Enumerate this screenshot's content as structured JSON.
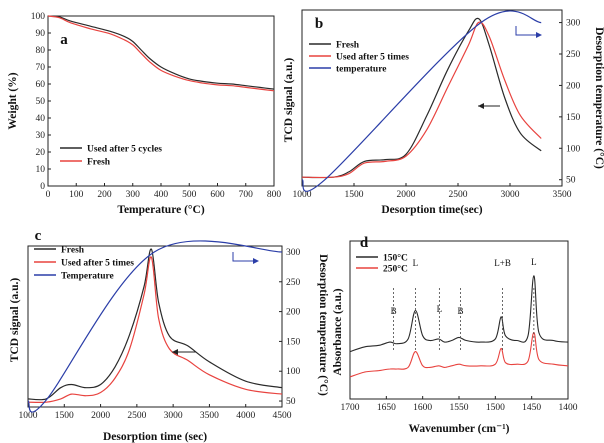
{
  "colors": {
    "black": "#2a2a2a",
    "red": "#e8433f",
    "blue": "#2b3ea8"
  },
  "chart_data": [
    {
      "panel": "a",
      "type": "line",
      "xlabel": "Temperature (°C)",
      "ylabel": "Weight (%)",
      "xlim": [
        0,
        800
      ],
      "ylim": [
        0,
        100
      ],
      "xticks": [
        "0",
        "100",
        "200",
        "300",
        "400",
        "500",
        "600",
        "700",
        "800"
      ],
      "yticks": [
        "0",
        "10",
        "20",
        "30",
        "40",
        "50",
        "60",
        "70",
        "80",
        "90",
        "100"
      ],
      "legend_position": "bottom-left",
      "series": [
        {
          "name": "Used after 5 cycles",
          "color": "black",
          "points": [
            [
              0,
              100
            ],
            [
              40,
              99.5
            ],
            [
              80,
              97
            ],
            [
              150,
              94
            ],
            [
              220,
              91
            ],
            [
              270,
              88
            ],
            [
              300,
              85
            ],
            [
              330,
              80
            ],
            [
              360,
              75
            ],
            [
              400,
              70
            ],
            [
              450,
              66
            ],
            [
              500,
              63
            ],
            [
              550,
              61.5
            ],
            [
              600,
              60.5
            ],
            [
              650,
              60
            ],
            [
              700,
              59
            ],
            [
              750,
              58
            ],
            [
              800,
              57
            ]
          ]
        },
        {
          "name": "Fresh",
          "color": "red",
          "points": [
            [
              0,
              100
            ],
            [
              40,
              99
            ],
            [
              80,
              96
            ],
            [
              150,
              92.5
            ],
            [
              220,
              89.5
            ],
            [
              270,
              86
            ],
            [
              300,
              83
            ],
            [
              330,
              78
            ],
            [
              360,
              73
            ],
            [
              400,
              68
            ],
            [
              450,
              64.5
            ],
            [
              500,
              62
            ],
            [
              550,
              60.5
            ],
            [
              600,
              59.5
            ],
            [
              650,
              59
            ],
            [
              700,
              58
            ],
            [
              750,
              57
            ],
            [
              800,
              56
            ]
          ]
        }
      ]
    },
    {
      "panel": "b",
      "type": "line",
      "xlabel": "Desorption time(sec)",
      "ylabel": "TCD signal (a.u.)",
      "y2label": "Desorption temperature (°C)",
      "xlim": [
        1000,
        3500
      ],
      "y2lim": [
        40,
        320
      ],
      "xticks": [
        "1000",
        "1500",
        "2000",
        "2500",
        "3000",
        "3500"
      ],
      "y2ticks": [
        "50",
        "100",
        "150",
        "200",
        "250",
        "300"
      ],
      "legend_position": "top-left",
      "series": [
        {
          "name": "Fresh",
          "color": "black",
          "axis": "left",
          "points": [
            [
              1000,
              0.05
            ],
            [
              1300,
              0.05
            ],
            [
              1450,
              0.08
            ],
            [
              1600,
              0.14
            ],
            [
              1800,
              0.15
            ],
            [
              2000,
              0.18
            ],
            [
              2200,
              0.4
            ],
            [
              2400,
              0.66
            ],
            [
              2600,
              0.88
            ],
            [
              2700,
              0.95
            ],
            [
              2800,
              0.8
            ],
            [
              2950,
              0.5
            ],
            [
              3100,
              0.3
            ],
            [
              3300,
              0.2
            ]
          ]
        },
        {
          "name": "Used after 5 times",
          "color": "red",
          "axis": "left",
          "points": [
            [
              1000,
              0.05
            ],
            [
              1300,
              0.05
            ],
            [
              1450,
              0.07
            ],
            [
              1600,
              0.13
            ],
            [
              1800,
              0.14
            ],
            [
              2000,
              0.17
            ],
            [
              2200,
              0.32
            ],
            [
              2400,
              0.56
            ],
            [
              2600,
              0.8
            ],
            [
              2700,
              0.93
            ],
            [
              2800,
              0.85
            ],
            [
              2950,
              0.6
            ],
            [
              3100,
              0.4
            ],
            [
              3300,
              0.27
            ]
          ]
        },
        {
          "name": "temperature",
          "color": "blue",
          "axis": "right",
          "points": [
            [
              1000,
              50
            ],
            [
              1220,
              50
            ],
            [
              2720,
              300
            ],
            [
              3300,
              300
            ]
          ]
        }
      ],
      "annotations": [
        "left-arrow near red curve",
        "right arrow to right axis"
      ]
    },
    {
      "panel": "c",
      "type": "line",
      "xlabel": "Desorption time (sec)",
      "ylabel": "TCD signal (a.u.)",
      "y2label": "Desorption temperature (°C)",
      "xlim": [
        1000,
        4500
      ],
      "y2lim": [
        40,
        310
      ],
      "xticks": [
        "1000",
        "1500",
        "2000",
        "2500",
        "3000",
        "3500",
        "4000",
        "4500"
      ],
      "y2ticks": [
        "50",
        "100",
        "150",
        "200",
        "250",
        "300"
      ],
      "legend_position": "top-left",
      "series": [
        {
          "name": "Fresh",
          "color": "black",
          "axis": "left",
          "points": [
            [
              1000,
              0.05
            ],
            [
              1250,
              0.05
            ],
            [
              1450,
              0.12
            ],
            [
              1600,
              0.14
            ],
            [
              1800,
              0.12
            ],
            [
              2000,
              0.14
            ],
            [
              2200,
              0.25
            ],
            [
              2400,
              0.45
            ],
            [
              2600,
              0.75
            ],
            [
              2700,
              0.98
            ],
            [
              2800,
              0.65
            ],
            [
              2950,
              0.44
            ],
            [
              3200,
              0.38
            ],
            [
              3500,
              0.28
            ],
            [
              4000,
              0.16
            ],
            [
              4500,
              0.12
            ]
          ]
        },
        {
          "name": "Used after 5 times",
          "color": "red",
          "axis": "left",
          "points": [
            [
              1000,
              0.03
            ],
            [
              1250,
              0.03
            ],
            [
              1450,
              0.05
            ],
            [
              1600,
              0.08
            ],
            [
              1800,
              0.07
            ],
            [
              2000,
              0.09
            ],
            [
              2200,
              0.18
            ],
            [
              2400,
              0.36
            ],
            [
              2600,
              0.7
            ],
            [
              2700,
              0.93
            ],
            [
              2800,
              0.55
            ],
            [
              2950,
              0.36
            ],
            [
              3200,
              0.29
            ],
            [
              3500,
              0.2
            ],
            [
              4000,
              0.11
            ],
            [
              4500,
              0.08
            ]
          ]
        },
        {
          "name": "Temperature",
          "color": "blue",
          "axis": "right",
          "points": [
            [
              1000,
              50
            ],
            [
              1240,
              50
            ],
            [
              2740,
              300
            ],
            [
              4500,
              300
            ]
          ]
        }
      ],
      "annotations": [
        "left-arrow near curves",
        "right arrow to right axis"
      ]
    },
    {
      "panel": "d",
      "type": "line",
      "xlabel": "Wavenumber (cm⁻¹)",
      "ylabel": "Absorbance (a.u.)",
      "xlim": [
        1700,
        1400
      ],
      "xticks": [
        "1700",
        "1650",
        "1600",
        "1550",
        "1500",
        "1450",
        "1400"
      ],
      "legend_position": "top-left",
      "peak_labels": [
        {
          "text": "B",
          "x": 1640
        },
        {
          "text": "L",
          "x": 1610
        },
        {
          "text": "L",
          "x": 1577
        },
        {
          "text": "B",
          "x": 1548
        },
        {
          "text": "L+B",
          "x": 1490
        },
        {
          "text": "L",
          "x": 1447
        }
      ],
      "series": [
        {
          "name": "150°C",
          "color": "black",
          "points": [
            [
              1700,
              0.3
            ],
            [
              1680,
              0.33
            ],
            [
              1660,
              0.34
            ],
            [
              1645,
              0.36
            ],
            [
              1635,
              0.35
            ],
            [
              1620,
              0.38
            ],
            [
              1610,
              0.56
            ],
            [
              1600,
              0.4
            ],
            [
              1590,
              0.37
            ],
            [
              1578,
              0.38
            ],
            [
              1570,
              0.36
            ],
            [
              1560,
              0.37
            ],
            [
              1550,
              0.39
            ],
            [
              1540,
              0.37
            ],
            [
              1520,
              0.36
            ],
            [
              1500,
              0.38
            ],
            [
              1492,
              0.52
            ],
            [
              1486,
              0.4
            ],
            [
              1470,
              0.37
            ],
            [
              1455,
              0.4
            ],
            [
              1447,
              0.78
            ],
            [
              1440,
              0.42
            ],
            [
              1420,
              0.37
            ],
            [
              1400,
              0.36
            ]
          ]
        },
        {
          "name": "250°C",
          "color": "red",
          "points": [
            [
              1700,
              0.14
            ],
            [
              1680,
              0.17
            ],
            [
              1660,
              0.18
            ],
            [
              1645,
              0.19
            ],
            [
              1635,
              0.19
            ],
            [
              1620,
              0.2
            ],
            [
              1610,
              0.3
            ],
            [
              1600,
              0.21
            ],
            [
              1590,
              0.2
            ],
            [
              1578,
              0.21
            ],
            [
              1570,
              0.2
            ],
            [
              1560,
              0.21
            ],
            [
              1550,
              0.22
            ],
            [
              1540,
              0.21
            ],
            [
              1520,
              0.21
            ],
            [
              1500,
              0.22
            ],
            [
              1492,
              0.32
            ],
            [
              1486,
              0.23
            ],
            [
              1470,
              0.22
            ],
            [
              1455,
              0.24
            ],
            [
              1447,
              0.42
            ],
            [
              1440,
              0.25
            ],
            [
              1420,
              0.22
            ],
            [
              1400,
              0.21
            ]
          ]
        }
      ]
    }
  ]
}
